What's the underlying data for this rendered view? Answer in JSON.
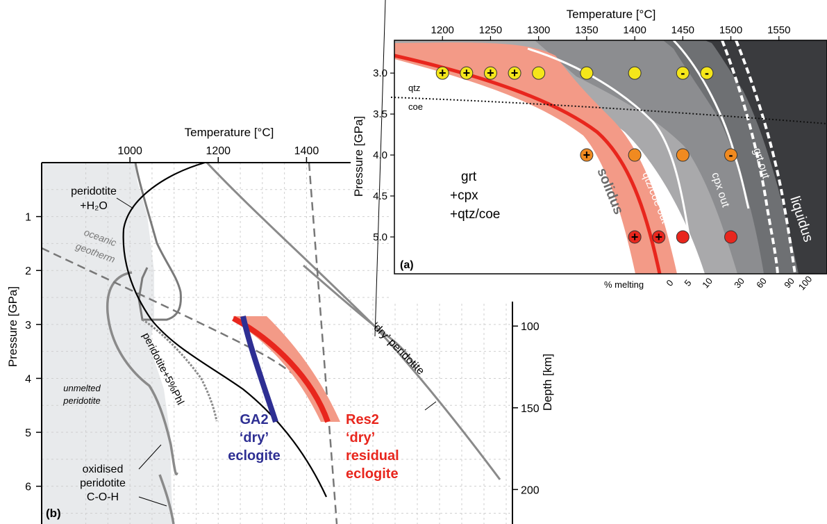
{
  "chart_data": [
    {
      "panel": "(a)",
      "type": "line",
      "xlabel": "Temperature [°C]",
      "ylabel": "Pressure [GPa]",
      "xlim": [
        1150,
        1600
      ],
      "ylim": [
        5.45,
        2.6
      ],
      "x_ticks": [
        1200,
        1250,
        1300,
        1350,
        1400,
        1450,
        1500,
        1550
      ],
      "y_ticks": [
        3.0,
        3.5,
        4.0,
        4.5,
        5.0
      ],
      "grid": false,
      "field_label": [
        "grt",
        "+cpx",
        "+qtz/coe"
      ],
      "curves": [
        {
          "name": "solidus",
          "color": "#e8261d"
        },
        {
          "name": "qtz/coe out",
          "color": "#ffffff"
        },
        {
          "name": "cpx out",
          "color": "#ffffff"
        },
        {
          "name": "grt out",
          "color": "#ffffff"
        },
        {
          "name": "liquidus",
          "color": "#ffffff"
        }
      ],
      "phase_boundary": {
        "upper": "qtz",
        "lower": "coe"
      },
      "melting_scale_label": "% melting",
      "melting_ticks": [
        "0",
        "5",
        "10",
        "30",
        "60",
        "90",
        "100"
      ],
      "experiments": [
        {
          "T": 1200,
          "P": 3.0,
          "color": "#f5e61a",
          "mark": "+"
        },
        {
          "T": 1225,
          "P": 3.0,
          "color": "#f5e61a",
          "mark": "+"
        },
        {
          "T": 1250,
          "P": 3.0,
          "color": "#f5e61a",
          "mark": "+"
        },
        {
          "T": 1275,
          "P": 3.0,
          "color": "#f5e61a",
          "mark": "+"
        },
        {
          "T": 1300,
          "P": 3.0,
          "color": "#f5e61a",
          "mark": ""
        },
        {
          "T": 1350,
          "P": 3.0,
          "color": "#f5e61a",
          "mark": ""
        },
        {
          "T": 1400,
          "P": 3.0,
          "color": "#f5e61a",
          "mark": ""
        },
        {
          "T": 1450,
          "P": 3.0,
          "color": "#f5e61a",
          "mark": "-"
        },
        {
          "T": 1475,
          "P": 3.0,
          "color": "#f5e61a",
          "mark": "-"
        },
        {
          "T": 1350,
          "P": 4.0,
          "color": "#f08a20",
          "mark": "+"
        },
        {
          "T": 1400,
          "P": 4.0,
          "color": "#f08a20",
          "mark": ""
        },
        {
          "T": 1450,
          "P": 4.0,
          "color": "#f08a20",
          "mark": ""
        },
        {
          "T": 1500,
          "P": 4.0,
          "color": "#f08a20",
          "mark": "-"
        },
        {
          "T": 1400,
          "P": 5.0,
          "color": "#e8261d",
          "mark": "+"
        },
        {
          "T": 1425,
          "P": 5.0,
          "color": "#e8261d",
          "mark": "+"
        },
        {
          "T": 1450,
          "P": 5.0,
          "color": "#e8261d",
          "mark": ""
        },
        {
          "T": 1500,
          "P": 5.0,
          "color": "#e8261d",
          "mark": ""
        }
      ]
    },
    {
      "panel": "(b)",
      "type": "line",
      "xlabel": "Temperature [°C]",
      "ylabel": "Pressure [GPa]",
      "y2label": "Depth  [km]",
      "xlim": [
        800,
        1500
      ],
      "ylim": [
        0,
        6.7
      ],
      "x_ticks": [
        1000,
        1200,
        1400
      ],
      "y_ticks": [
        1,
        2,
        3,
        4,
        5,
        6
      ],
      "depth_ticks": [
        100,
        150,
        200
      ],
      "grid": true,
      "labels": {
        "peridotite_h2o": [
          "peridotite",
          "+H₂O"
        ],
        "geotherm": [
          "oceanic",
          "geotherm"
        ],
        "unmelted": [
          "unmelted",
          "peridotite"
        ],
        "phl": "peridotite+5%Phl",
        "oxidised": [
          "oxidised",
          "peridotite",
          "C-O-H"
        ],
        "dry_peridotite": "‘dry’ peridotite"
      },
      "series": [
        {
          "name": "GA2 ‘dry’ eclogite",
          "color": "#2e2f93",
          "x": [
            1225,
            1300
          ],
          "y": [
            3.0,
            5.0
          ]
        },
        {
          "name": "Res2 ‘dry’ residual eclogite",
          "color": "#e8261d",
          "x": [
            1225,
            1410
          ],
          "y": [
            3.0,
            5.0
          ]
        }
      ],
      "legend": {
        "ga2": [
          "GA2",
          "‘dry’",
          "eclogite"
        ],
        "res2": [
          "Res2",
          "‘dry’",
          "residual",
          "eclogite"
        ]
      }
    }
  ]
}
